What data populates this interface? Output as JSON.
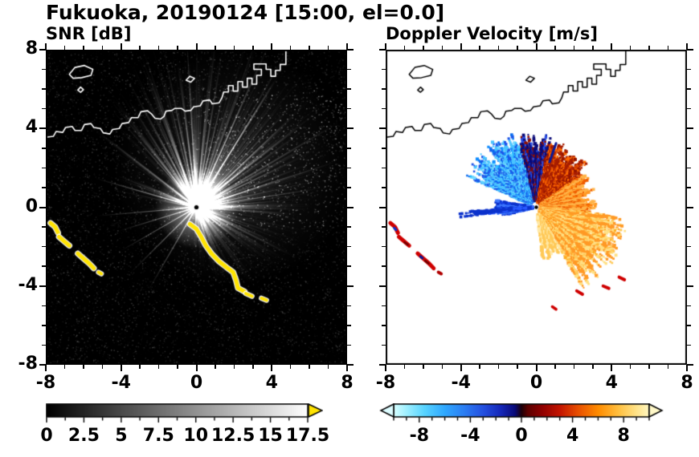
{
  "figure": {
    "title": "Fukuoka, 20190124 [15:00, el=0.0]"
  },
  "panels": [
    {
      "subtitle": "SNR [dB]"
    },
    {
      "subtitle": "Doppler Velocity [m/s]"
    }
  ],
  "axes": {
    "range": [
      -8,
      8
    ],
    "minor_step": 1,
    "tick_values": [
      -8,
      -4,
      0,
      4,
      8
    ],
    "xticks": [
      "-8",
      "-4",
      "0",
      "4",
      "8"
    ],
    "ytick_values": [
      8,
      4,
      0,
      -4,
      -8
    ],
    "yticks": [
      "8",
      "4",
      "0",
      "-4",
      "-8"
    ]
  },
  "colorbars": {
    "snr": {
      "labels": [
        "0",
        "2.5",
        "5",
        "7.5",
        "10",
        "12.5",
        "15",
        "17.5"
      ],
      "values": [
        0,
        2.5,
        5,
        7.5,
        10,
        12.5,
        15,
        17.5
      ],
      "range": [
        0,
        17.5
      ],
      "stops": [
        [
          0,
          "#000000"
        ],
        [
          1,
          "#ffffff"
        ]
      ],
      "over_arrow_color": "#ffe300"
    },
    "doppler": {
      "labels": [
        "-8",
        "-4",
        "0",
        "4",
        "8"
      ],
      "values": [
        -8,
        -4,
        0,
        4,
        8
      ],
      "range": [
        -10,
        10
      ],
      "under_arrow_color": "#ddfcff",
      "over_arrow_color": "#fff8c8",
      "stops": [
        [
          0,
          "#d8ffff"
        ],
        [
          0.05,
          "#9ff0ff"
        ],
        [
          0.12,
          "#58d4ff"
        ],
        [
          0.2,
          "#2fa8ff"
        ],
        [
          0.28,
          "#2b7bf2"
        ],
        [
          0.35,
          "#2450e0"
        ],
        [
          0.42,
          "#1527b8"
        ],
        [
          0.475,
          "#0a0a78"
        ],
        [
          0.5,
          "#1c0008"
        ],
        [
          0.525,
          "#5c0000"
        ],
        [
          0.58,
          "#8f0000"
        ],
        [
          0.65,
          "#c31400"
        ],
        [
          0.72,
          "#e84e00"
        ],
        [
          0.8,
          "#ff8c00"
        ],
        [
          0.88,
          "#ffc040"
        ],
        [
          0.95,
          "#ffe389"
        ],
        [
          1,
          "#fff7c0"
        ]
      ]
    }
  },
  "chart_data": [
    {
      "type": "heatmap",
      "panel": "left",
      "title": "SNR [dB]",
      "xlabel": "",
      "ylabel": "",
      "xlim": [
        -8,
        8
      ],
      "ylim": [
        -8,
        8
      ],
      "xticks": [
        -8,
        -4,
        0,
        4,
        8
      ],
      "yticks": [
        8,
        4,
        0,
        -4,
        -8
      ],
      "units": "dB",
      "colorbar": {
        "range": [
          0,
          17.5
        ],
        "ticks": [
          0,
          2.5,
          5,
          7.5,
          10,
          12.5,
          15,
          17.5
        ],
        "colormap": "grayscale black-to-white",
        "over_color": "yellow"
      },
      "radar_location": [
        0,
        0
      ],
      "content": "Radar PPI of SNR: bright white radial beams fading with range from radar at (0,0) on black background; saturated (yellow, >17.5 dB) clutter arc from (-0.4,-0.9) curving to (2.9,-4.5) southeast of radar; isolated yellow clutter arcs near (-7.5,-1) to (-5.4,-3.3) far west-southwest; blocked (black) ray sectors toward W and SW; coastline overlaid in white along y=3.5-8"
    },
    {
      "type": "heatmap",
      "panel": "right",
      "title": "Doppler Velocity [m/s]",
      "xlabel": "",
      "ylabel": "",
      "xlim": [
        -8,
        8
      ],
      "ylim": [
        -8,
        8
      ],
      "xticks": [
        -8,
        -4,
        0,
        4,
        8
      ],
      "yticks": [
        8,
        4,
        0,
        -4,
        -8
      ],
      "units": "m/s",
      "colorbar": {
        "range": [
          -10,
          10
        ],
        "ticks": [
          -8,
          -4,
          0,
          4,
          8
        ],
        "colormap": "cyan-blue-navy for negative, dark-red-red-orange-yellow for positive"
      },
      "radar_location": [
        0,
        0
      ],
      "content": "Doppler velocity fan around radar at (0,0): negative velocities (cyan/blue) toward NW-N out to r=4, zero-isodop seam near azimuth 350-10 deg, positive velocities (dark red to orange to pale yellow) NE through SE out to r=5; small blue wedge due west; isolated red clutter arcs near (-7.5,-1) to (-5.4,-3.3); coastline overlaid in black"
    }
  ],
  "render": {
    "coastline": [
      {
        "closed": false,
        "pts": [
          [
            -8,
            3.55
          ],
          [
            -7.6,
            3.6
          ],
          [
            -7.45,
            3.85
          ],
          [
            -7.1,
            3.8
          ],
          [
            -6.95,
            4.05
          ],
          [
            -6.6,
            4.1
          ],
          [
            -6.45,
            3.9
          ],
          [
            -6.1,
            3.9
          ],
          [
            -5.95,
            4.2
          ],
          [
            -5.6,
            4.25
          ],
          [
            -5.45,
            4.05
          ],
          [
            -5.1,
            4.0
          ],
          [
            -4.95,
            3.78
          ],
          [
            -4.6,
            3.72
          ],
          [
            -4.45,
            3.95
          ],
          [
            -4.1,
            4.0
          ],
          [
            -3.95,
            4.25
          ],
          [
            -3.6,
            4.3
          ],
          [
            -3.45,
            4.55
          ],
          [
            -3.1,
            4.55
          ],
          [
            -2.95,
            4.85
          ],
          [
            -2.6,
            4.9
          ],
          [
            -2.4,
            4.75
          ],
          [
            -2.2,
            4.52
          ],
          [
            -1.9,
            4.48
          ],
          [
            -1.72,
            4.62
          ],
          [
            -1.62,
            4.88
          ],
          [
            -1.3,
            4.92
          ],
          [
            -1.15,
            5.02
          ],
          [
            -0.8,
            5.02
          ],
          [
            -0.6,
            4.88
          ],
          [
            -0.3,
            4.92
          ],
          [
            -0.15,
            5.1
          ],
          [
            0.2,
            5.15
          ],
          [
            0.35,
            5.4
          ],
          [
            0.7,
            5.45
          ],
          [
            0.85,
            5.25
          ],
          [
            1.2,
            5.3
          ],
          [
            1.35,
            5.55
          ],
          [
            1.45,
            5.85
          ],
          [
            1.7,
            5.85
          ],
          [
            1.7,
            6.18
          ],
          [
            1.95,
            6.18
          ],
          [
            1.95,
            5.9
          ],
          [
            2.2,
            5.9
          ],
          [
            2.2,
            6.38
          ],
          [
            2.45,
            6.38
          ],
          [
            2.45,
            6.1
          ],
          [
            2.7,
            6.1
          ],
          [
            2.7,
            6.55
          ],
          [
            2.95,
            6.55
          ],
          [
            2.95,
            6.25
          ],
          [
            3.2,
            6.25
          ],
          [
            3.2,
            6.7
          ],
          [
            3.45,
            6.7
          ],
          [
            3.45,
            7.0
          ],
          [
            3.05,
            7.0
          ],
          [
            3.05,
            7.28
          ],
          [
            3.7,
            7.28
          ],
          [
            3.7,
            7.0
          ],
          [
            3.95,
            7.0
          ],
          [
            3.95,
            6.65
          ],
          [
            4.2,
            6.65
          ],
          [
            4.2,
            6.95
          ],
          [
            4.45,
            6.95
          ],
          [
            4.45,
            7.25
          ],
          [
            4.75,
            7.25
          ],
          [
            4.75,
            8.05
          ]
        ]
      },
      {
        "closed": true,
        "pts": [
          [
            -6.75,
            6.75
          ],
          [
            -6.45,
            7.1
          ],
          [
            -5.95,
            7.2
          ],
          [
            -5.5,
            7.0
          ],
          [
            -5.6,
            6.7
          ],
          [
            -6.1,
            6.58
          ],
          [
            -6.55,
            6.55
          ]
        ]
      },
      {
        "closed": true,
        "pts": [
          [
            -6.3,
            5.95
          ],
          [
            -6.15,
            6.1
          ],
          [
            -6.0,
            5.97
          ],
          [
            -6.15,
            5.84
          ]
        ]
      },
      {
        "closed": true,
        "pts": [
          [
            -0.55,
            6.45
          ],
          [
            -0.35,
            6.65
          ],
          [
            -0.1,
            6.55
          ],
          [
            -0.3,
            6.35
          ]
        ]
      }
    ],
    "snr": {
      "ray_count": 950,
      "blocked_deg": [
        [
          168,
          176
        ],
        [
          182,
          189
        ],
        [
          205,
          212
        ],
        [
          218,
          225
        ],
        [
          95,
          101
        ],
        [
          108,
          113
        ]
      ],
      "bright_rays_deg": [
        120,
        135,
        150,
        163,
        175,
        196,
        232,
        247
      ],
      "clutter": [
        {
          "pts": [
            [
              -0.35,
              -0.85
            ],
            [
              0.0,
              -1.1
            ],
            [
              0.25,
              -1.5
            ],
            [
              0.5,
              -1.95
            ],
            [
              0.8,
              -2.35
            ],
            [
              1.2,
              -2.75
            ],
            [
              1.6,
              -3.05
            ],
            [
              1.95,
              -3.3
            ],
            [
              2.1,
              -3.7
            ],
            [
              2.2,
              -4.1
            ],
            [
              2.55,
              -4.28
            ]
          ],
          "w": 5
        },
        {
          "pts": [
            [
              2.62,
              -4.38
            ],
            [
              2.95,
              -4.52
            ]
          ],
          "w": 4
        },
        {
          "pts": [
            [
              3.45,
              -4.62
            ],
            [
              3.72,
              -4.72
            ]
          ],
          "w": 4
        },
        {
          "pts": [
            [
              -7.75,
              -0.8
            ],
            [
              -7.5,
              -1.0
            ],
            [
              -7.35,
              -1.3
            ]
          ],
          "w": 5
        },
        {
          "pts": [
            [
              -7.3,
              -1.5
            ],
            [
              -7.0,
              -1.75
            ],
            [
              -6.75,
              -1.95
            ]
          ],
          "w": 5
        },
        {
          "pts": [
            [
              -6.3,
              -2.35
            ],
            [
              -6.0,
              -2.6
            ],
            [
              -5.7,
              -2.85
            ],
            [
              -5.45,
              -3.1
            ]
          ],
          "w": 5
        },
        {
          "pts": [
            [
              -5.2,
              -3.3
            ],
            [
              -5.05,
              -3.38
            ]
          ],
          "w": 4
        }
      ]
    },
    "doppler_sectors": [
      {
        "a0": 293,
        "a1": 345,
        "r0": 0.45,
        "r1": 3.9,
        "skip": 0.2,
        "colors": [
          "#27b9ff",
          "#0f8dff",
          "#0b6cf0",
          "#6fd8ff",
          "#1e54e8",
          "#49c4ff"
        ]
      },
      {
        "a0": 345,
        "a1": 372,
        "r0": 0.45,
        "r1": 3.55,
        "skip": 0.25,
        "colors": [
          "#0c2cc0",
          "#071a9a",
          "#2a4fe8",
          "#8f1000",
          "#0a0a78"
        ]
      },
      {
        "a0": 12,
        "a1": 56,
        "r0": 0.35,
        "r1": 3.3,
        "skip": 0.22,
        "colors": [
          "#c02800",
          "#e04a00",
          "#8f1400",
          "#ff6a00",
          "#a81e00"
        ]
      },
      {
        "a0": 56,
        "a1": 96,
        "r0": 0.3,
        "r1": 3.05,
        "skip": 0.2,
        "colors": [
          "#ff7b00",
          "#ff9a26",
          "#ef5c00",
          "#ffb347"
        ]
      },
      {
        "a0": 96,
        "a1": 149,
        "r0": 0.3,
        "r1": 4.6,
        "skip": 0.24,
        "colors": [
          "#ffab22",
          "#ffc957",
          "#ffe083",
          "#ff9a26"
        ]
      },
      {
        "a0": 149,
        "a1": 173,
        "r0": 0.5,
        "r1": 2.7,
        "skip": 0.3,
        "colors": [
          "#ffd878",
          "#ffe9a8",
          "#ffc957"
        ]
      },
      {
        "a0": 257,
        "a1": 279,
        "r0": 0.25,
        "r1": 2.15,
        "skip": 0.22,
        "colors": [
          "#1747ee",
          "#0c32cc",
          "#3d77ff"
        ]
      },
      {
        "a0": 263,
        "a1": 266.5,
        "r0": 0.3,
        "r1": 3.85,
        "skip": 0.15,
        "colors": [
          "#2859ff",
          "#0c32cc"
        ]
      }
    ],
    "doppler_marks": [
      {
        "pts": [
          [
            -7.75,
            -0.8
          ],
          [
            -7.5,
            -1.0
          ],
          [
            -7.35,
            -1.3
          ]
        ],
        "w": 5,
        "color": "#cf0000"
      },
      {
        "pts": [
          [
            -7.3,
            -1.5
          ],
          [
            -7.0,
            -1.75
          ],
          [
            -6.75,
            -1.95
          ]
        ],
        "w": 5,
        "color": "#cf0000"
      },
      {
        "pts": [
          [
            -6.3,
            -2.35
          ],
          [
            -6.0,
            -2.6
          ],
          [
            -5.7,
            -2.85
          ],
          [
            -5.45,
            -3.1
          ]
        ],
        "w": 5,
        "color": "#cf0000"
      },
      {
        "pts": [
          [
            -5.2,
            -3.3
          ],
          [
            -5.05,
            -3.38
          ]
        ],
        "w": 4,
        "color": "#b00000"
      },
      {
        "pts": [
          [
            -7.0,
            -1.78
          ],
          [
            -6.82,
            -1.9
          ]
        ],
        "w": 2.5,
        "color": "#700000"
      },
      {
        "pts": [
          [
            -5.9,
            -2.72
          ],
          [
            -5.72,
            -2.86
          ]
        ],
        "w": 2.5,
        "color": "#700000"
      },
      {
        "pts": [
          [
            -7.55,
            -1.05
          ],
          [
            -7.45,
            -1.15
          ]
        ],
        "w": 3,
        "color": "#0c32cc"
      },
      {
        "pts": [
          [
            -6.15,
            -2.5
          ],
          [
            -6.05,
            -2.58
          ]
        ],
        "w": 3,
        "color": "#071a9a"
      },
      {
        "pts": [
          [
            2.15,
            -4.25
          ],
          [
            2.45,
            -4.42
          ]
        ],
        "w": 4,
        "color": "#cf0000"
      },
      {
        "pts": [
          [
            3.55,
            -4.0
          ],
          [
            3.85,
            -4.12
          ]
        ],
        "w": 4,
        "color": "#cf0000"
      },
      {
        "pts": [
          [
            4.4,
            -3.55
          ],
          [
            4.68,
            -3.68
          ]
        ],
        "w": 4,
        "color": "#cf0000"
      },
      {
        "pts": [
          [
            0.85,
            -5.05
          ],
          [
            1.05,
            -5.18
          ]
        ],
        "w": 3.5,
        "color": "#cf0000"
      },
      {
        "pts": [
          [
            0.7,
            2.3
          ],
          [
            1.05,
            3.25
          ]
        ],
        "w": 3,
        "color": "#0a1a99"
      }
    ]
  }
}
